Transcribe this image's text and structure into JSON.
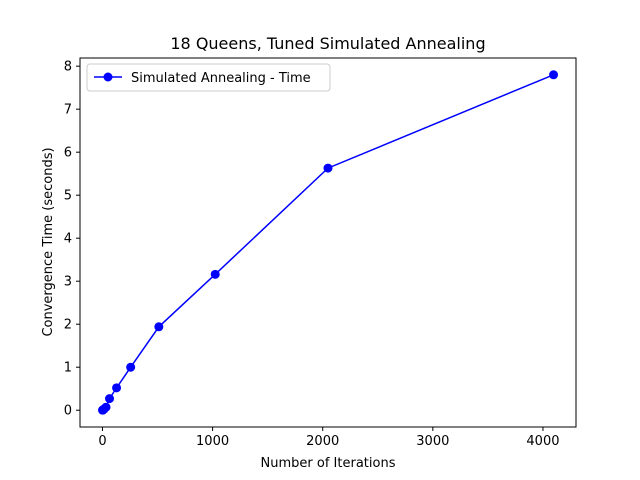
{
  "chart_data": {
    "type": "line",
    "title": "18 Queens, Tuned Simulated Annealing",
    "xlabel": "Number of Iterations",
    "ylabel": "Convergence Time (seconds)",
    "xlim": [
      -204,
      4300
    ],
    "ylim": [
      -0.39,
      8.19
    ],
    "xticks": [
      0,
      1000,
      2000,
      3000,
      4000
    ],
    "yticks": [
      0,
      1,
      2,
      3,
      4,
      5,
      6,
      7,
      8
    ],
    "grid": false,
    "legend_position": "top-left",
    "series": [
      {
        "name": "Simulated Annealing - Time",
        "color": "#0000ff",
        "marker": "circle",
        "x": [
          1,
          2,
          4,
          8,
          16,
          32,
          64,
          128,
          256,
          512,
          1024,
          2048,
          4096
        ],
        "y": [
          0.002,
          0.004,
          0.008,
          0.016,
          0.03,
          0.07,
          0.27,
          0.52,
          1.0,
          1.94,
          3.16,
          5.63,
          7.8
        ]
      }
    ]
  }
}
